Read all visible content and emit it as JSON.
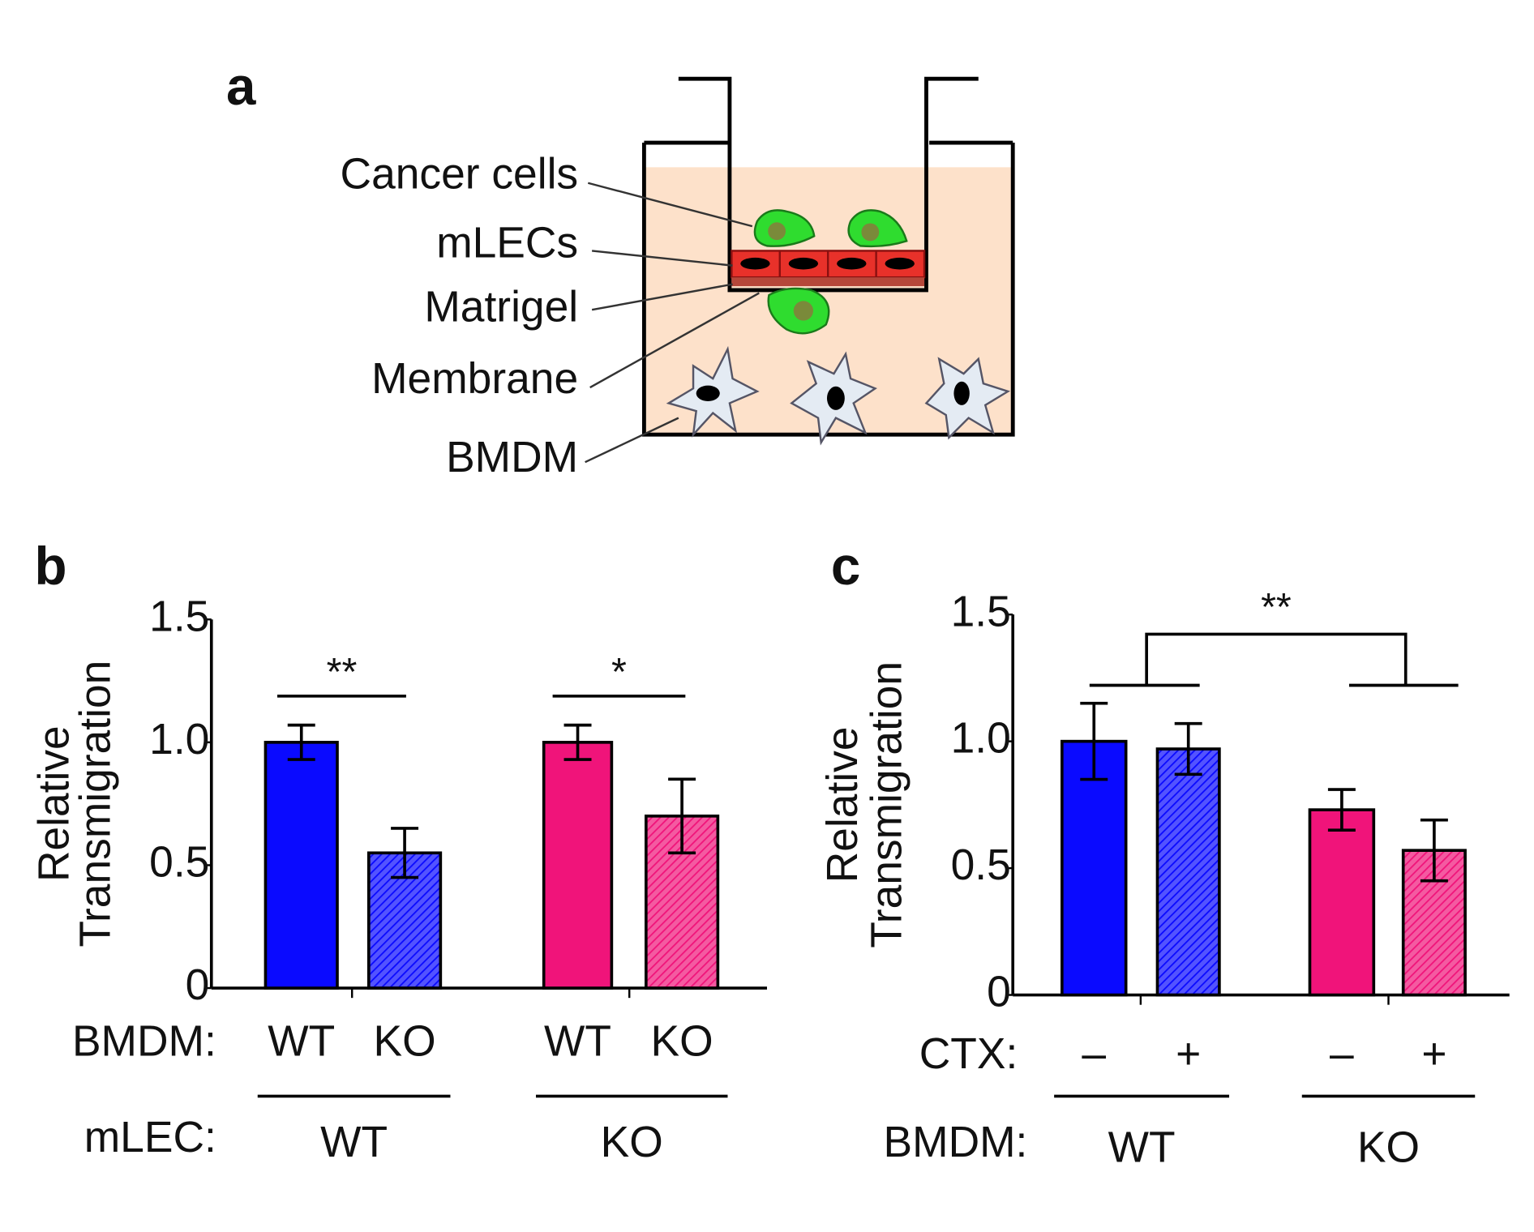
{
  "panel_labels": [
    "a",
    "b",
    "c"
  ],
  "diagram": {
    "labels": [
      "Cancer cells",
      "mLECs",
      "Matrigel",
      "Membrane",
      "BMDM"
    ]
  },
  "chart_data": [
    {
      "type": "bar",
      "y_label": [
        "Relative",
        "Transmigration"
      ],
      "category_label": "BMDM:",
      "categories": [
        "WT",
        "KO",
        "WT",
        "KO"
      ],
      "group_label": "mLEC:",
      "groups": [
        "WT",
        "KO"
      ],
      "values": [
        1.0,
        0.55,
        1.0,
        0.7
      ],
      "errors": [
        0.07,
        0.1,
        0.07,
        0.15
      ],
      "colors": [
        "#0a0aff",
        "#0a0aff",
        "#f0147a",
        "#f0147a"
      ],
      "hatched": [
        false,
        true,
        false,
        true
      ],
      "ylim": [
        0,
        1.5
      ],
      "yticks": [
        0,
        0.5,
        {
          "value": 1,
          "label": "1.0"
        },
        1.5
      ],
      "annotations": [
        "**",
        "*"
      ]
    },
    {
      "type": "bar",
      "y_label": [
        "Relative",
        "Transmigration"
      ],
      "category_label": "CTX:",
      "categories": [
        "–",
        "+",
        "–",
        "+"
      ],
      "group_label": "BMDM:",
      "groups": [
        "WT",
        "KO"
      ],
      "values": [
        1.0,
        0.97,
        0.73,
        0.57
      ],
      "errors": [
        0.15,
        0.1,
        0.08,
        0.12
      ],
      "colors": [
        "#0a0aff",
        "#0a0aff",
        "#f0147a",
        "#f0147a"
      ],
      "hatched": [
        false,
        true,
        false,
        true
      ],
      "ylim": [
        0,
        1.5
      ],
      "yticks": [
        0,
        0.5,
        {
          "value": 1,
          "label": "1.0"
        },
        1.5
      ],
      "annotations": [
        "**"
      ]
    }
  ]
}
